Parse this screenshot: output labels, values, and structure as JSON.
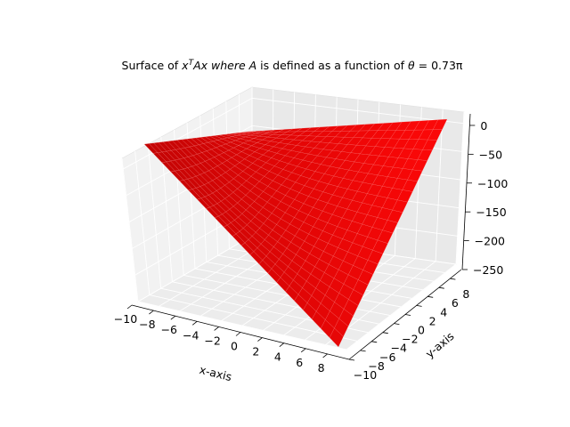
{
  "chart_data": {
    "type": "surface",
    "projection": "3d",
    "title": {
      "prefix": "Surface of ",
      "x1": "x",
      "sup": "T",
      "mid1": "Ax where ",
      "A": "A",
      "mid2": " is defined as a function of ",
      "theta": "θ",
      "suffix": " = 0.73π"
    },
    "xlabel": "x-axis",
    "ylabel": "y-axis",
    "xlim": [
      -10,
      10
    ],
    "ylim": [
      -10,
      10
    ],
    "zlim": [
      -250,
      20
    ],
    "xticks": [
      "−10",
      "−8",
      "−6",
      "−4",
      "−2",
      "0",
      "2",
      "4",
      "6",
      "8"
    ],
    "yticks": [
      "−10",
      "−8",
      "−6",
      "−4",
      "−2",
      "0",
      "2",
      "4",
      "6",
      "8"
    ],
    "zticks": [
      "0",
      "−50",
      "−100",
      "−150",
      "−200",
      "−250"
    ],
    "surface_color": "#cc0000",
    "edge_color": "#ff9c9c",
    "grid": true,
    "corner_values": {
      "x_min_y_min": -10,
      "x_max_y_min": -235,
      "x_min_y_max": -2,
      "x_max_y_max": 0
    }
  }
}
